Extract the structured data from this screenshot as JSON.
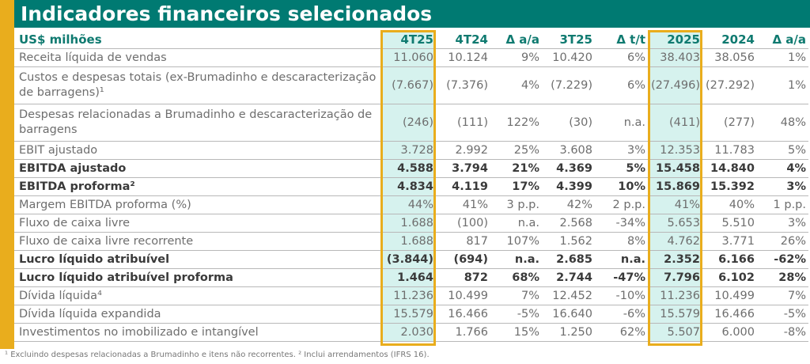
{
  "title": "Indicadores financeiros selecionados",
  "columns": [
    "US$ milhões",
    "4T25",
    "4T24",
    "Δ a/a",
    "3T25",
    "Δ t/t",
    "2025",
    "2024",
    "Δ a/a"
  ],
  "rows": [
    {
      "label": "Receita líquida de vendas",
      "v": [
        "11.060",
        "10.124",
        "9%",
        "10.420",
        "6%",
        "38.403",
        "38.056",
        "1%"
      ]
    },
    {
      "label": "Custos e despesas totais (ex-Brumadinho e descaracterização de barragens)¹",
      "v": [
        "(7.667)",
        "(7.376)",
        "4%",
        "(7.229)",
        "6%",
        "(27.496)",
        "(27.292)",
        "1%"
      ]
    },
    {
      "label": "Despesas relacionadas a Brumadinho e descaracterização de barragens",
      "v": [
        "(246)",
        "(111)",
        "122%",
        "(30)",
        "n.a.",
        "(411)",
        "(277)",
        "48%"
      ]
    },
    {
      "label": "EBIT ajustado",
      "v": [
        "3.728",
        "2.992",
        "25%",
        "3.608",
        "3%",
        "12.353",
        "11.783",
        "5%"
      ]
    },
    {
      "label": "EBITDA ajustado",
      "v": [
        "4.588",
        "3.794",
        "21%",
        "4.369",
        "5%",
        "15.458",
        "14.840",
        "4%"
      ]
    },
    {
      "label": "EBITDA proforma²",
      "v": [
        "4.834",
        "4.119",
        "17%",
        "4.399",
        "10%",
        "15.869",
        "15.392",
        "3%"
      ]
    },
    {
      "label": "Margem EBITDA proforma (%)",
      "v": [
        "44%",
        "41%",
        "3 p.p.",
        "42%",
        "2 p.p.",
        "41%",
        "40%",
        "1 p.p."
      ]
    },
    {
      "label": "Fluxo de caixa livre",
      "v": [
        "1.688",
        "(100)",
        "n.a.",
        "2.568",
        "-34%",
        "5.653",
        "5.510",
        "3%"
      ]
    },
    {
      "label": "Fluxo de caixa livre recorrente",
      "v": [
        "1.688",
        "817",
        "107%",
        "1.562",
        "8%",
        "4.762",
        "3.771",
        "26%"
      ]
    },
    {
      "label": "Lucro líquido atribuível",
      "v": [
        "(3.844)",
        "(694)",
        "n.a.",
        "2.685",
        "n.a.",
        "2.352",
        "6.166",
        "-62%"
      ]
    },
    {
      "label": "Lucro líquido atribuível proforma",
      "v": [
        "1.464",
        "872",
        "68%",
        "2.744",
        "-47%",
        "7.796",
        "6.102",
        "28%"
      ]
    },
    {
      "label": "Dívida líquida⁴",
      "v": [
        "11.236",
        "10.499",
        "7%",
        "12.452",
        "-10%",
        "11.236",
        "10.499",
        "7%"
      ]
    },
    {
      "label": "Dívida líquida expandida",
      "v": [
        "15.579",
        "16.466",
        "-5%",
        "16.640",
        "-6%",
        "15.579",
        "16.466",
        "-5%"
      ]
    },
    {
      "label": "Investimentos no imobilizado e intangível",
      "v": [
        "2.030",
        "1.766",
        "15%",
        "1.250",
        "62%",
        "5.507",
        "6.000",
        "-8%"
      ]
    }
  ],
  "footnote": "¹ Excluindo despesas relacionadas a Brumadinho e itens não recorrentes. ² Inclui arrendamentos (IFRS 16)."
}
